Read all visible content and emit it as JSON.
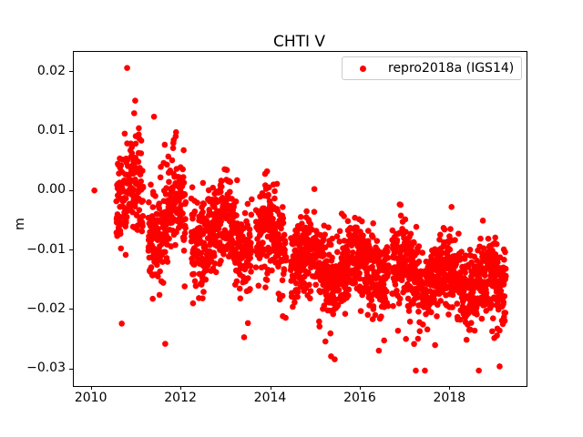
{
  "chart_data": {
    "type": "scatter",
    "title": "CHTI V",
    "xlabel": "",
    "ylabel": "m",
    "legend": {
      "label": "repro2018a (IGS14)",
      "marker_color": "#ff0000",
      "position": "upper right",
      "border_color": "#cccccc"
    },
    "marker": {
      "shape": "dot",
      "color": "#ff0000",
      "radius_px": 3.3
    },
    "axes": {
      "xlim": [
        2009.6,
        2019.7
      ],
      "ylim": [
        -0.0328,
        0.0234
      ],
      "xticks": [
        2010,
        2012,
        2014,
        2016,
        2018
      ],
      "yticks": [
        "0.02",
        "0.01",
        "0.00",
        "−0.01",
        "−0.02",
        "−0.03"
      ],
      "ytick_values": [
        0.02,
        0.01,
        0.0,
        -0.01,
        -0.02,
        -0.03
      ],
      "grid": false,
      "frame": true,
      "spine_color": "#000000"
    },
    "series": [
      {
        "name": "repro2018a (IGS14)",
        "color": "#ff0000",
        "description": "Daily GPS vertical position time series for station CHTI (~2500 points, 2010.05–2019.25), drifting from ~0.000 m down to ~−0.017 m with annual oscillation, large scatter in 2010–2011 (spikes to +0.021 m) and low outliers to −0.030 m.",
        "x_range": [
          2010.55,
          2019.24
        ],
        "generator": {
          "seed": 42,
          "step_years": 0.00274,
          "dropout": 0.2,
          "trend_knots": [
            [
              2010.0,
              -0.001
            ],
            [
              2010.8,
              -0.002
            ],
            [
              2011.5,
              -0.004
            ],
            [
              2012.0,
              -0.005
            ],
            [
              2012.7,
              -0.007
            ],
            [
              2013.5,
              -0.008
            ],
            [
              2014.0,
              -0.0085
            ],
            [
              2014.7,
              -0.011
            ],
            [
              2015.3,
              -0.013
            ],
            [
              2016.0,
              -0.013
            ],
            [
              2017.0,
              -0.014
            ],
            [
              2018.0,
              -0.0145
            ],
            [
              2018.7,
              -0.0155
            ],
            [
              2019.24,
              -0.0165
            ]
          ],
          "seasonal_amp_knots": [
            [
              2010.0,
              0.0045
            ],
            [
              2012.0,
              0.0035
            ],
            [
              2014.0,
              0.0025
            ],
            [
              2016.0,
              0.002
            ],
            [
              2019.24,
              0.002
            ]
          ],
          "seasonal_phase_year": 0.92,
          "noise_sd_knots": [
            [
              2010.0,
              0.0045
            ],
            [
              2012.0,
              0.004
            ],
            [
              2014.0,
              0.0035
            ],
            [
              2019.24,
              0.0032
            ]
          ],
          "gaps": [
            [
              2011.15,
              2011.26
            ],
            [
              2012.1,
              2012.22
            ],
            [
              2013.57,
              2013.66
            ],
            [
              2014.35,
              2014.44
            ],
            [
              2016.62,
              2016.7
            ]
          ],
          "up_tail": {
            "until": 2012.25,
            "p": 0.05,
            "max": 0.009
          },
          "low_outlier": {
            "p": 0.012,
            "min": 0.004,
            "max": 0.013
          },
          "clip": [
            -0.0302,
            0.0207
          ]
        },
        "notable_points": [
          {
            "x": 2010.06,
            "y": 0.0001,
            "note": "isolated first point near 0.00"
          },
          {
            "x": 2010.79,
            "y": 0.0207,
            "note": "maximum"
          },
          {
            "x": 2010.97,
            "y": 0.0152
          },
          {
            "x": 2011.39,
            "y": 0.0125
          },
          {
            "x": 2010.67,
            "y": -0.0223
          },
          {
            "x": 2011.64,
            "y": -0.0257
          },
          {
            "x": 2013.4,
            "y": -0.0246
          },
          {
            "x": 2015.42,
            "y": -0.0283
          },
          {
            "x": 2017.23,
            "y": -0.0302,
            "note": "minimum"
          },
          {
            "x": 2019.1,
            "y": -0.0295
          }
        ]
      }
    ]
  }
}
